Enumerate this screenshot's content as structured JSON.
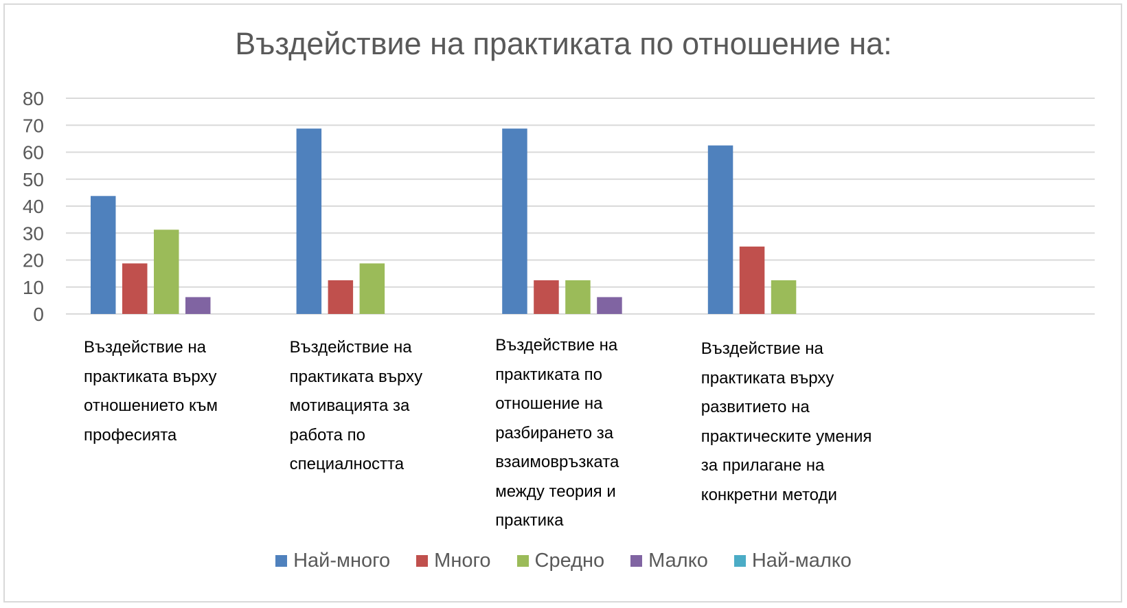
{
  "chart_data": {
    "type": "bar",
    "title": "Въздействие на практиката по отношение на:",
    "categories": [
      "Въздействие на практиката върху отношението към професията",
      "Въздействие на практиката върху мотивацията за работа по специалността",
      "Въздействие на практиката по отношение на разбирането за взаимовръзката между теория и практика",
      "Въздействие на практиката върху развитието на практическите умения за прилагане на конкретни методи",
      ""
    ],
    "series": [
      {
        "name": "Най-много",
        "color": "#4f81bd",
        "values": [
          43.75,
          68.75,
          68.75,
          62.5,
          0
        ]
      },
      {
        "name": "Много",
        "color": "#c0504d",
        "values": [
          18.75,
          12.5,
          12.5,
          25,
          0
        ]
      },
      {
        "name": "Средно",
        "color": "#9bbb59",
        "values": [
          31.25,
          18.75,
          12.5,
          12.5,
          0
        ]
      },
      {
        "name": "Малко",
        "color": "#8064a2",
        "values": [
          6.25,
          0,
          6.25,
          0,
          0
        ]
      },
      {
        "name": "Най-малко",
        "color": "#4bacc6",
        "values": [
          0,
          0,
          0,
          0,
          0
        ]
      }
    ],
    "ylim": [
      0,
      80
    ],
    "yticks": [
      "0",
      "10",
      "20",
      "30",
      "40",
      "50",
      "60",
      "70",
      "80"
    ],
    "grid": true,
    "legend": "bottom",
    "xlabel": "",
    "ylabel": ""
  }
}
